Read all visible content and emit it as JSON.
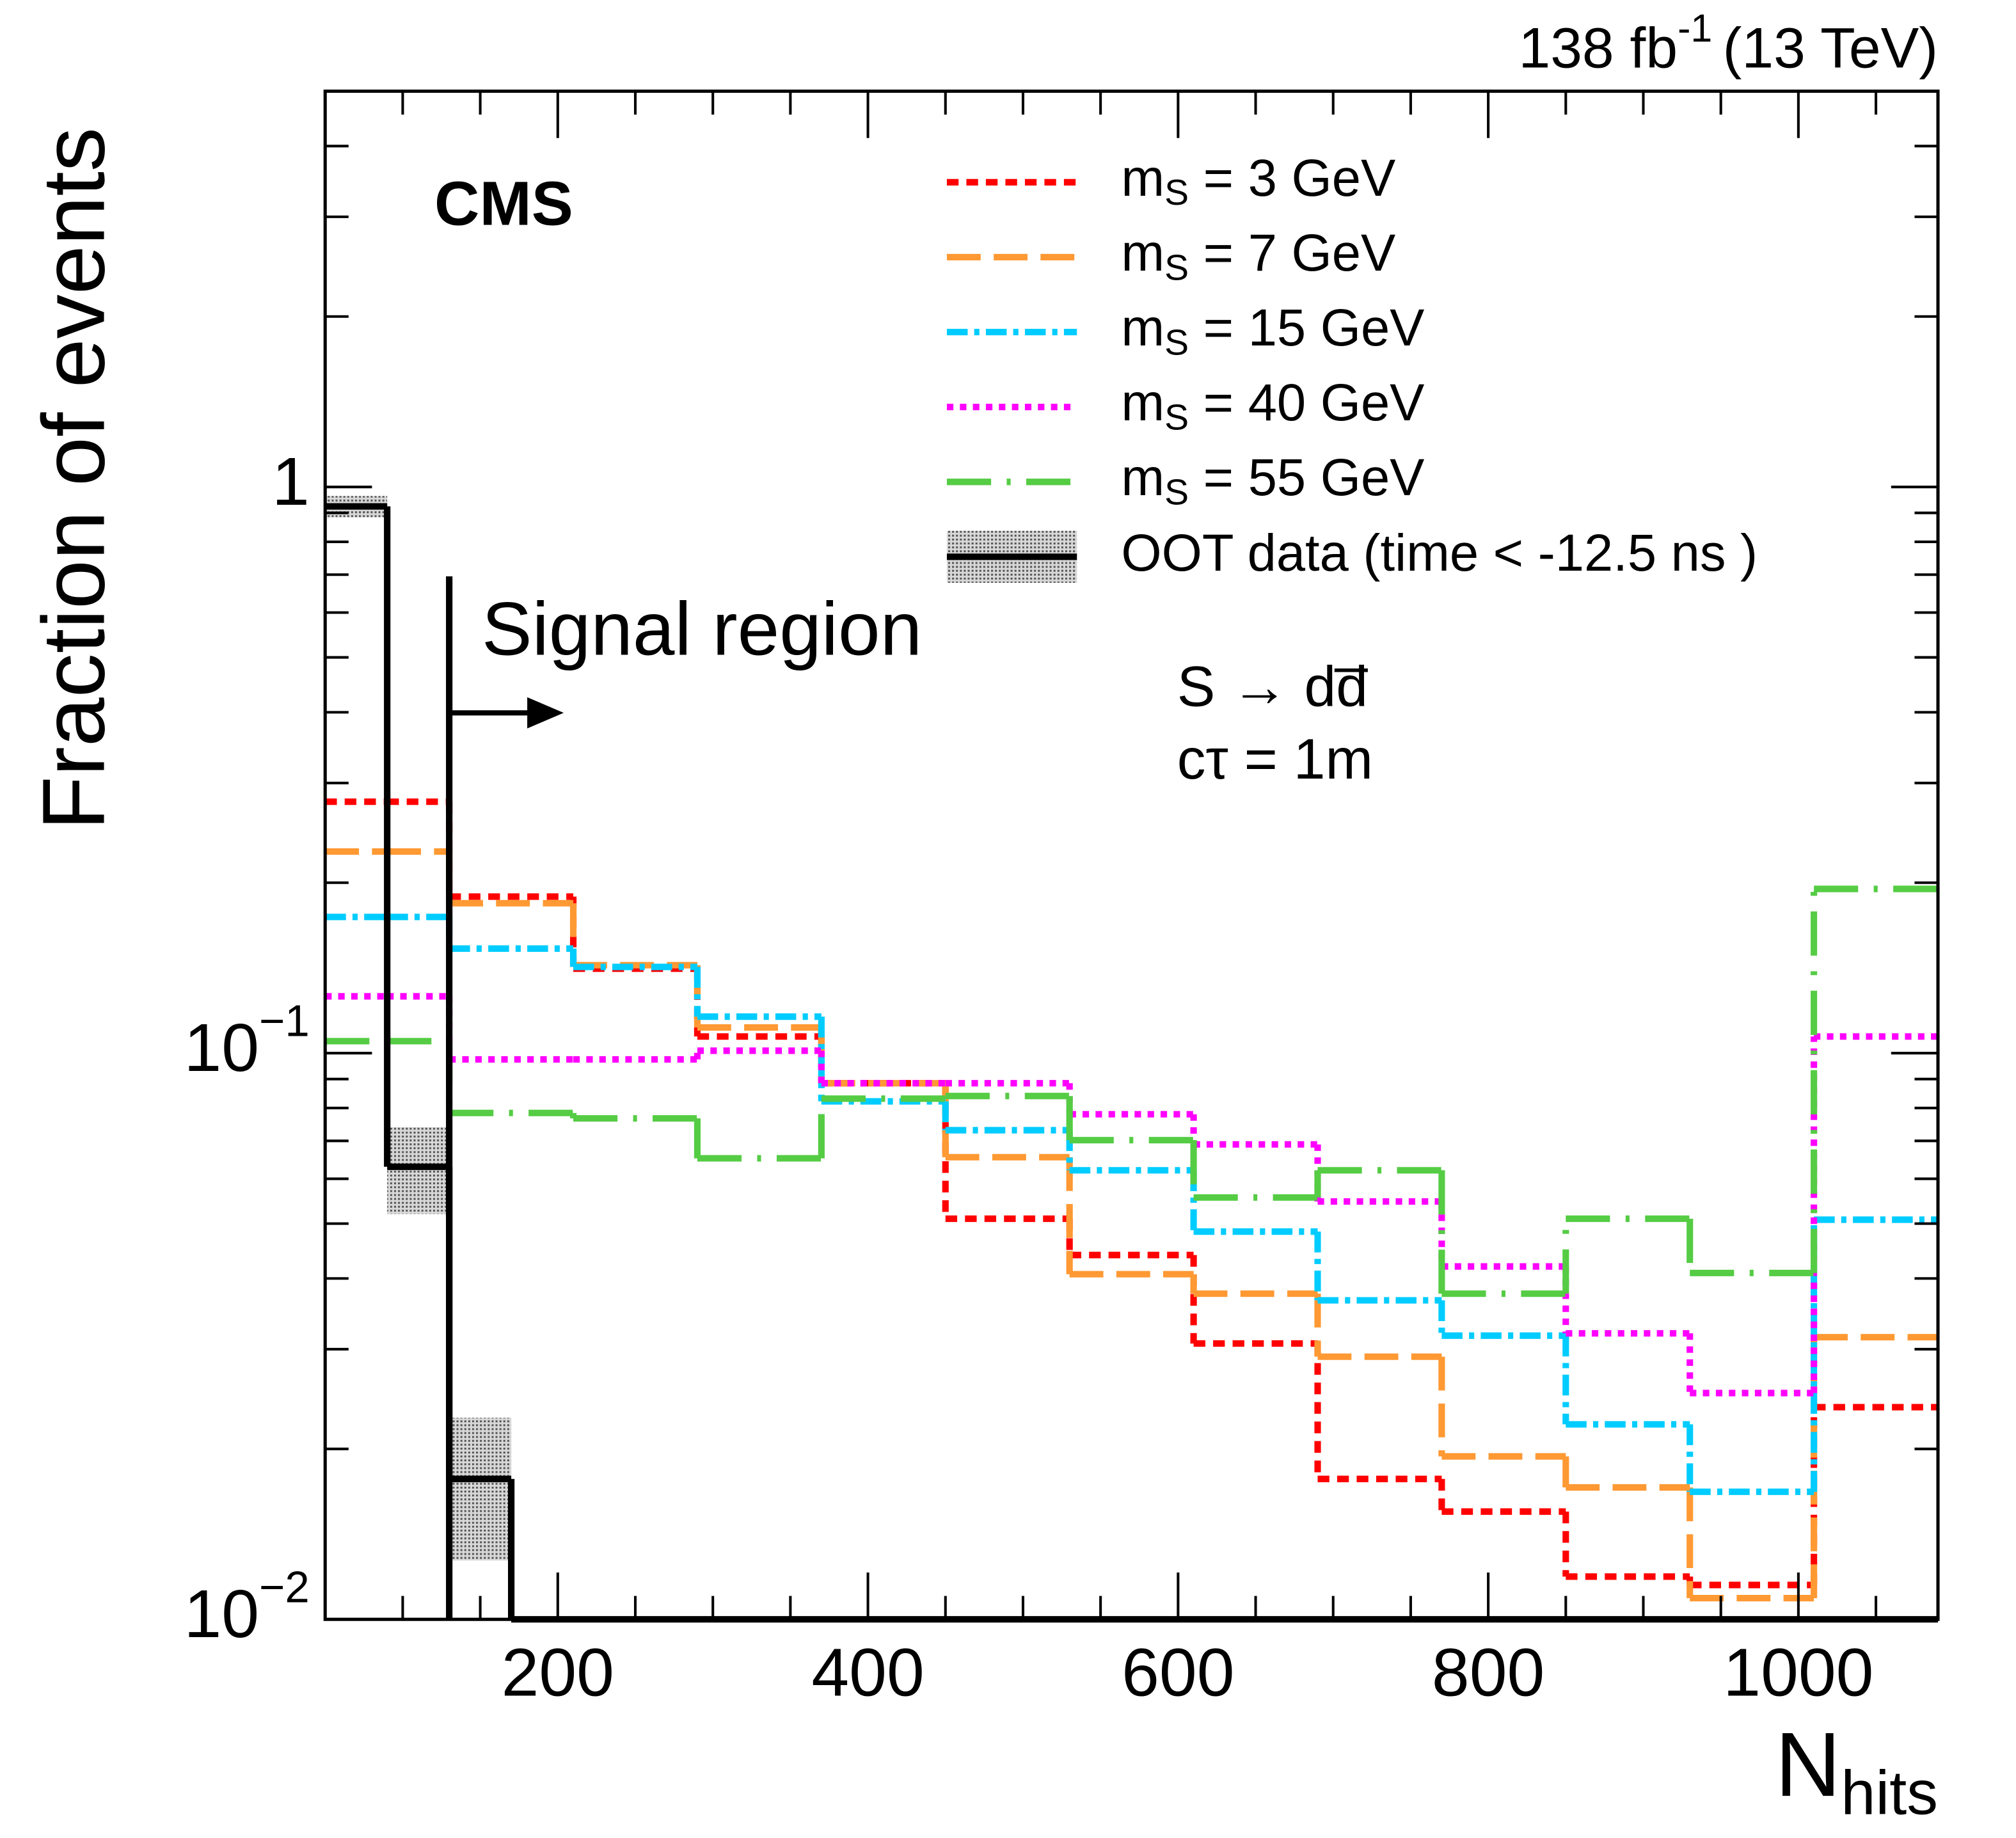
{
  "chart_data": {
    "type": "histogram",
    "title": "CMS",
    "lumi": [
      "138 fb",
      "-1",
      "(13 TeV)"
    ],
    "x_label": "Nhits",
    "y_label": "Fraction of events",
    "annotations": [
      "S → dd̅",
      "cτ = 1m"
    ],
    "signal_region": {
      "x": 130,
      "label": "Signal region"
    },
    "log_y": true,
    "xlim": [
      50,
      1090
    ],
    "ylim": [
      0.01,
      5
    ],
    "xticks": [
      200,
      400,
      600,
      800,
      1000
    ],
    "xminor_ticks": [
      100,
      150,
      250,
      300,
      350,
      450,
      500,
      550,
      650,
      700,
      750,
      850,
      900,
      950,
      1050
    ],
    "yticks": [
      {
        "value": 0.01,
        "label": "10−2"
      },
      {
        "value": 0.1,
        "label": "10−1"
      },
      1
    ],
    "yminor_ticks": [
      0.02,
      0.03,
      0.04,
      0.05,
      0.06,
      0.07,
      0.08,
      0.09,
      0.2,
      0.3,
      0.4,
      0.5,
      0.6,
      0.7,
      0.8,
      0.9,
      2,
      3,
      4,
      5
    ],
    "bins": [
      50,
      90,
      130,
      210,
      290,
      370,
      450,
      530,
      610,
      690,
      770,
      850,
      930,
      1010,
      1090
    ],
    "series": [
      {
        "name": "mS = 3 GeV",
        "color": "#ff0000",
        "dash": "9 6",
        "values": [
          0.278,
          0.278,
          0.189,
          0.141,
          0.107,
          0.0885,
          0.051,
          0.044,
          0.0307,
          0.0177,
          0.0155,
          0.0119,
          0.0115,
          0.0237
        ]
      },
      {
        "name": "mS = 7 GeV",
        "color": "#ff9933",
        "dash": "26 10",
        "values": [
          0.227,
          0.227,
          0.184,
          0.143,
          0.111,
          0.0885,
          0.0655,
          0.0407,
          0.0376,
          0.0291,
          0.0194,
          0.0171,
          0.0109,
          0.0315
        ]
      },
      {
        "name": "mS = 15 GeV",
        "color": "#00ccff",
        "dash": "16 5 4 5",
        "values": [
          0.174,
          0.174,
          0.153,
          0.142,
          0.116,
          0.0822,
          0.0731,
          0.0621,
          0.0484,
          0.0366,
          0.0317,
          0.0221,
          0.0168,
          0.0508
        ]
      },
      {
        "name": "mS = 40 GeV",
        "color": "#ff00ff",
        "dash": "5 5",
        "values": [
          0.126,
          0.126,
          0.0975,
          0.0975,
          0.101,
          0.0885,
          0.0885,
          0.078,
          0.069,
          0.0547,
          0.042,
          0.032,
          0.0251,
          0.107
        ]
      },
      {
        "name": "mS = 55 GeV",
        "color": "#55cc44",
        "dash": "34 12 3 12",
        "values": [
          0.105,
          0.105,
          0.0784,
          0.0767,
          0.0652,
          0.0831,
          0.084,
          0.0702,
          0.0556,
          0.0621,
          0.0376,
          0.051,
          0.0409,
          0.195
        ]
      }
    ],
    "oot": {
      "name": "OOT data (time < -12.5 ns )",
      "color": "#000000",
      "bins": [
        50,
        90,
        130,
        170
      ],
      "values": [
        0.924,
        0.063,
        0.0177
      ],
      "errors": [
        0.04,
        0.011,
        0.005
      ]
    }
  }
}
